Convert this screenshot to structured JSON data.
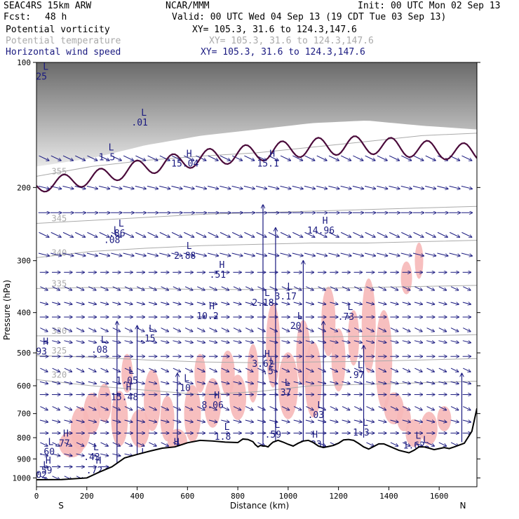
{
  "header": {
    "model": "SEAC4RS 15km ARW",
    "org": "NCAR/MMM",
    "init": "Init: 00 UTC Mon 02 Sep 13",
    "fcst_label": "Fcst:",
    "fcst_value": "48 h",
    "valid": "Valid: 00 UTC Wed 04 Sep 13 (19 CDT Tue 03 Sep 13)"
  },
  "legend": [
    {
      "name": "Potential vorticity",
      "xy": "XY= 105.3, 31.6 to 124.3,147.6",
      "color": "#000000"
    },
    {
      "name": "Potential temperature",
      "xy": "XY= 105.3, 31.6 to 124.3,147.6",
      "color": "#aaaaaa"
    },
    {
      "name": "Horizontal wind speed",
      "xy": "XY= 105.3, 31.6 to 124.3,147.6",
      "color": "#1a1a80"
    }
  ],
  "chart_data": {
    "type": "cross-section",
    "ylabel": "Pressure (hPa)",
    "xlabel": "Distance (km)",
    "x_ticks": [
      0,
      200,
      400,
      600,
      800,
      1000,
      1200,
      1400,
      1600
    ],
    "y_ticks": [
      100,
      200,
      300,
      400,
      500,
      600,
      700,
      800,
      900,
      1000
    ],
    "xlim": [
      0,
      1750
    ],
    "ylim": [
      1050,
      100
    ],
    "y_scale": "log",
    "end_labels": {
      "left": "S",
      "right": "N"
    },
    "theta_isentropes": [
      {
        "label": "355",
        "p": [
          188,
          178,
          172,
          168,
          165,
          160,
          155,
          150,
          148
        ]
      },
      {
        "label": "345",
        "p": [
          244,
          240,
          236,
          232,
          230,
          228,
          226,
          224,
          222
        ]
      },
      {
        "label": "340",
        "p": [
          295,
          285,
          280,
          276,
          274,
          272,
          272,
          270,
          268
        ]
      },
      {
        "label": "335",
        "p": [
          350,
          348,
          350,
          352,
          352,
          350,
          348,
          346,
          344
        ]
      },
      {
        "label": "330",
        "p": [
          455,
          455,
          458,
          460,
          460,
          458,
          456,
          455,
          452
        ]
      },
      {
        "label": "325",
        "p": [
          508,
          512,
          520,
          526,
          528,
          526,
          524,
          520,
          516
        ]
      },
      {
        "label": "320",
        "p": [
          580,
          600,
          615,
          630,
          620,
          600,
          595,
          590,
          585
        ]
      }
    ],
    "theta_labels_extra": [
      "305",
      "310",
      "320",
      "325",
      "330",
      "345",
      "340"
    ],
    "dynamic_tropopause_hPa": [
      198,
      190,
      178,
      170,
      165,
      160,
      158,
      162,
      165
    ],
    "terrain_hPa": [
      1010,
      1009,
      1000,
      968,
      940,
      895,
      878,
      862,
      848,
      842,
      823,
      812,
      815,
      820,
      822,
      806,
      808,
      818,
      832,
      842,
      835,
      838,
      838,
      842,
      830,
      820,
      812,
      820,
      830,
      838,
      825,
      815,
      812,
      822,
      838,
      845,
      840,
      835,
      825,
      810,
      808,
      812,
      826,
      842,
      852,
      840,
      828,
      828,
      838,
      858,
      870,
      858,
      842,
      842,
      848,
      855,
      850,
      845,
      850,
      842,
      825,
      772,
      680
    ],
    "terrain_x_km": [
      0,
      100,
      200,
      250,
      300,
      350,
      400,
      450,
      500,
      550,
      600,
      650,
      700,
      750,
      800,
      820,
      840,
      860,
      870,
      880,
      890,
      900,
      910,
      920,
      930,
      940,
      960,
      980,
      1000,
      1020,
      1040,
      1060,
      1080,
      1100,
      1120,
      1140,
      1160,
      1180,
      1200,
      1220,
      1240,
      1260,
      1280,
      1300,
      1320,
      1340,
      1360,
      1380,
      1400,
      1440,
      1480,
      1500,
      1520,
      1540,
      1560,
      1580,
      1600,
      1620,
      1640,
      1660,
      1700,
      1730,
      1750
    ],
    "highs_lows": [
      {
        "type": "L",
        "label": "1.5",
        "x_km": 280,
        "p": 172
      },
      {
        "type": "L",
        "label": ".01",
        "x_km": 410,
        "p": 142
      },
      {
        "type": "H",
        "label": "15.04",
        "x_km": 590,
        "p": 178
      },
      {
        "type": "H",
        "label": "15.1",
        "x_km": 920,
        "p": 178
      },
      {
        "type": "H",
        "label": "14.96",
        "x_km": 1130,
        "p": 258
      },
      {
        "type": "L",
        "label": ".86",
        "x_km": 320,
        "p": 262
      },
      {
        "type": "L",
        "label": ".08",
        "x_km": 300,
        "p": 272
      },
      {
        "type": "L",
        "label": "2.88",
        "x_km": 590,
        "p": 297
      },
      {
        "type": "H",
        "label": ".51",
        "x_km": 720,
        "p": 330
      },
      {
        "type": "L",
        "label": "2.18",
        "x_km": 900,
        "p": 385
      },
      {
        "type": "L",
        "label": "3.17",
        "x_km": 990,
        "p": 372
      },
      {
        "type": "L",
        "label": ".73",
        "x_km": 1230,
        "p": 416
      },
      {
        "type": "H",
        "label": "10.2",
        "x_km": 680,
        "p": 415
      },
      {
        "type": "L",
        "label": "20",
        "x_km": 1030,
        "p": 438
      },
      {
        "type": "L",
        "label": ".08",
        "x_km": 250,
        "p": 500
      },
      {
        "type": "H",
        "label": "93",
        "x_km": 20,
        "p": 505
      },
      {
        "type": "L",
        "label": ".15",
        "x_km": 440,
        "p": 470
      },
      {
        "type": "H",
        "label": "3.62",
        "x_km": 900,
        "p": 540
      },
      {
        "type": "L",
        "label": ".97",
        "x_km": 1270,
        "p": 575
      },
      {
        "type": "L",
        "label": "1.05",
        "x_km": 360,
        "p": 593
      },
      {
        "type": "L",
        "label": ".5",
        "x_km": 920,
        "p": 563
      },
      {
        "type": "L",
        "label": ".10",
        "x_km": 580,
        "p": 618
      },
      {
        "type": "H",
        "label": "15.48",
        "x_km": 350,
        "p": 650
      },
      {
        "type": "L",
        "label": ".37",
        "x_km": 980,
        "p": 633
      },
      {
        "type": "H",
        "label": "8.06",
        "x_km": 700,
        "p": 680
      },
      {
        "type": "L",
        "label": ".03",
        "x_km": 1110,
        "p": 718
      },
      {
        "type": "L",
        "label": "1.8",
        "x_km": 740,
        "p": 810
      },
      {
        "type": "L",
        "label": ".59",
        "x_km": 940,
        "p": 800
      },
      {
        "type": "L",
        "label": "1.3",
        "x_km": 1290,
        "p": 790
      },
      {
        "type": "H",
        "label": ".77",
        "x_km": 100,
        "p": 840
      },
      {
        "type": "L",
        "label": ".60",
        "x_km": 40,
        "p": 880
      },
      {
        "type": "H",
        "label": "8.23",
        "x_km": 1090,
        "p": 845
      },
      {
        "type": "L",
        "label": "1.62",
        "x_km": 1500,
        "p": 850
      },
      {
        "type": "H",
        "label": "7.04",
        "x_km": 540,
        "p": 880
      },
      {
        "type": "L",
        "label": ".02",
        "x_km": 1530,
        "p": 870
      },
      {
        "type": "L",
        "label": ".43",
        "x_km": 220,
        "p": 905
      },
      {
        "type": "L",
        "label": ".31",
        "x_km": 410,
        "p": 930
      },
      {
        "type": "H",
        "label": ".59",
        "x_km": 30,
        "p": 975
      },
      {
        "type": "H",
        "label": ".72",
        "x_km": 230,
        "p": 975
      },
      {
        "type": "H",
        "label": "8.98",
        "x_km": 360,
        "p": 985
      },
      {
        "type": "L",
        "label": "02",
        "x_km": 20,
        "p": 1000
      },
      {
        "type": "L",
        "label": "25",
        "x_km": 20,
        "p": 110
      }
    ]
  }
}
